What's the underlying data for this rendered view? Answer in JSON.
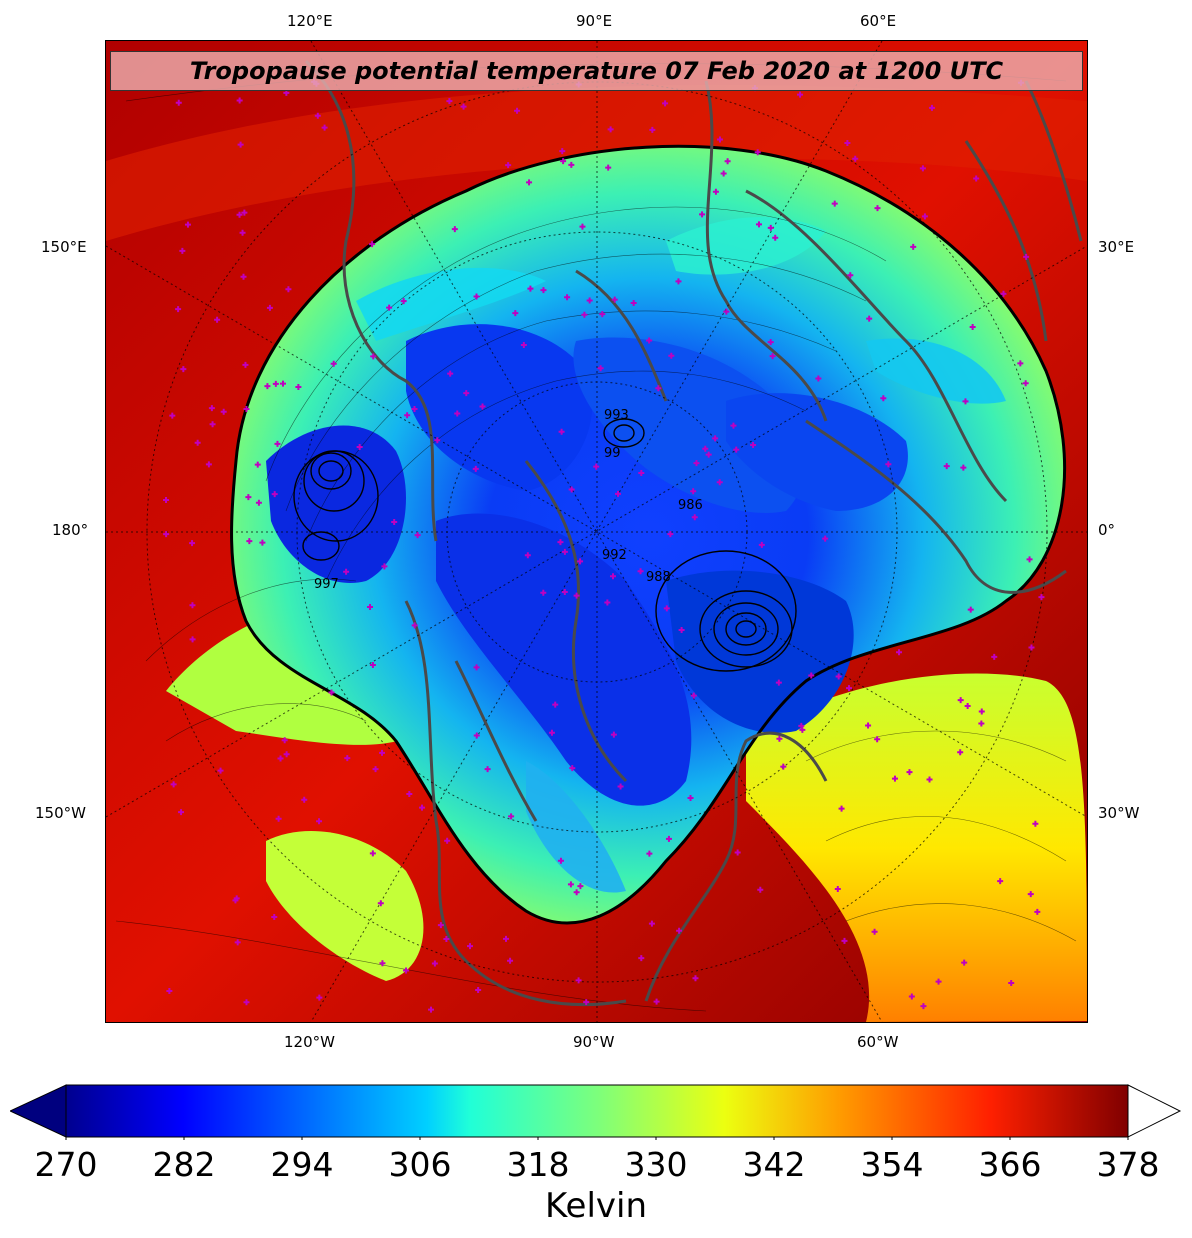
{
  "title": "Tropopause potential temperature 07 Feb 2020 at 1200 UTC",
  "lon_labels": {
    "top": [
      "120°E",
      "90°E",
      "60°E"
    ],
    "bottom": [
      "120°W",
      "90°W",
      "60°W"
    ],
    "left": [
      "150°E",
      "180°",
      "150°W"
    ],
    "right": [
      "30°E",
      "0°",
      "30°W"
    ]
  },
  "pressure_contour_labels": [
    "993",
    "99",
    "997",
    "992",
    "986",
    "988"
  ],
  "colorbar": {
    "ticks": [
      "270",
      "282",
      "294",
      "306",
      "318",
      "330",
      "342",
      "354",
      "366",
      "378"
    ],
    "unit": "Kelvin",
    "extend": "both",
    "min_arrow_color": "#00007f",
    "max_arrow_color": "#ffffff"
  },
  "colors": {
    "warm_background": "#7a0000",
    "coastline": "#4a4a4a",
    "station_marker": "#c000c0"
  }
}
